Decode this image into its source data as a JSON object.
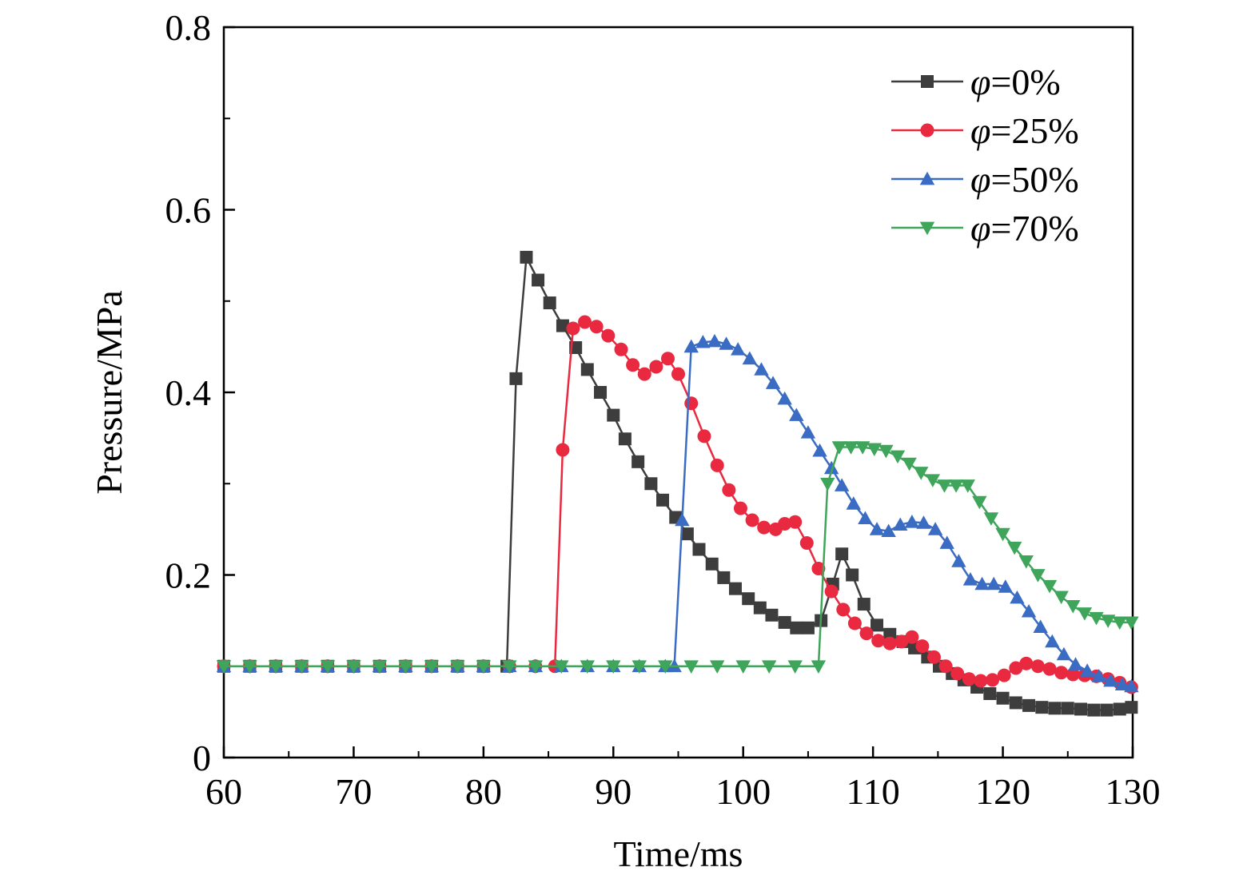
{
  "chart_data": {
    "type": "line",
    "xlabel": "Time/ms",
    "ylabel": "Pressure/MPa",
    "xlim": [
      60,
      130
    ],
    "ylim": [
      0,
      0.8
    ],
    "xticks": [
      60,
      70,
      80,
      90,
      100,
      110,
      120,
      130
    ],
    "yticks": [
      0,
      0.2,
      0.4,
      0.6,
      0.8
    ],
    "ytick_labels": [
      "0",
      "0.2",
      "0.4",
      "0.6",
      "0.8"
    ],
    "grid": false,
    "legend_position": "top-right",
    "series": [
      {
        "name": "φ=0%",
        "legend_symbol": "φ",
        "legend_value": "=0%",
        "color": "#3d3d3d",
        "marker": "square",
        "points": [
          [
            60,
            0.1
          ],
          [
            62,
            0.1
          ],
          [
            64,
            0.1
          ],
          [
            66,
            0.1
          ],
          [
            68,
            0.1
          ],
          [
            70,
            0.1
          ],
          [
            72,
            0.1
          ],
          [
            74,
            0.1
          ],
          [
            76,
            0.1
          ],
          [
            78,
            0.1
          ],
          [
            80,
            0.1
          ],
          [
            81.8,
            0.1
          ],
          [
            82.5,
            0.415
          ],
          [
            83.3,
            0.548
          ],
          [
            84.2,
            0.523
          ],
          [
            85.1,
            0.498
          ],
          [
            86.1,
            0.473
          ],
          [
            87.1,
            0.449
          ],
          [
            88,
            0.425
          ],
          [
            89,
            0.4
          ],
          [
            90,
            0.375
          ],
          [
            90.9,
            0.349
          ],
          [
            91.9,
            0.324
          ],
          [
            92.9,
            0.3
          ],
          [
            93.8,
            0.282
          ],
          [
            94.8,
            0.263
          ],
          [
            95.7,
            0.245
          ],
          [
            96.6,
            0.228
          ],
          [
            97.6,
            0.212
          ],
          [
            98.5,
            0.197
          ],
          [
            99.4,
            0.185
          ],
          [
            100.4,
            0.174
          ],
          [
            101.3,
            0.164
          ],
          [
            102.2,
            0.156
          ],
          [
            103.2,
            0.148
          ],
          [
            104.1,
            0.142
          ],
          [
            105,
            0.142
          ],
          [
            106,
            0.15
          ],
          [
            106.9,
            0.19
          ],
          [
            107.6,
            0.223
          ],
          [
            108.4,
            0.2
          ],
          [
            109.3,
            0.168
          ],
          [
            110.3,
            0.145
          ],
          [
            111.3,
            0.135
          ],
          [
            112.3,
            0.127
          ],
          [
            113.2,
            0.12
          ],
          [
            114.2,
            0.11
          ],
          [
            115.1,
            0.1
          ],
          [
            116.1,
            0.092
          ],
          [
            117,
            0.085
          ],
          [
            118,
            0.077
          ],
          [
            119,
            0.07
          ],
          [
            120,
            0.065
          ],
          [
            121,
            0.06
          ],
          [
            122,
            0.057
          ],
          [
            123,
            0.055
          ],
          [
            124,
            0.054
          ],
          [
            125,
            0.054
          ],
          [
            126,
            0.053
          ],
          [
            127,
            0.052
          ],
          [
            128,
            0.052
          ],
          [
            129,
            0.053
          ],
          [
            129.9,
            0.055
          ]
        ]
      },
      {
        "name": "φ=25%",
        "legend_symbol": "φ",
        "legend_value": "=25%",
        "color": "#e8293f",
        "marker": "circle",
        "points": [
          [
            60,
            0.1
          ],
          [
            62,
            0.1
          ],
          [
            64,
            0.1
          ],
          [
            66,
            0.1
          ],
          [
            68,
            0.1
          ],
          [
            70,
            0.1
          ],
          [
            72,
            0.1
          ],
          [
            74,
            0.1
          ],
          [
            76,
            0.1
          ],
          [
            78,
            0.1
          ],
          [
            80,
            0.1
          ],
          [
            82,
            0.1
          ],
          [
            84,
            0.1
          ],
          [
            85.5,
            0.1
          ],
          [
            86.1,
            0.337
          ],
          [
            86.9,
            0.47
          ],
          [
            87.8,
            0.477
          ],
          [
            88.7,
            0.472
          ],
          [
            89.6,
            0.462
          ],
          [
            90.6,
            0.447
          ],
          [
            91.5,
            0.43
          ],
          [
            92.4,
            0.42
          ],
          [
            93.3,
            0.428
          ],
          [
            94.2,
            0.437
          ],
          [
            95,
            0.42
          ],
          [
            96,
            0.388
          ],
          [
            97,
            0.352
          ],
          [
            98,
            0.32
          ],
          [
            98.9,
            0.293
          ],
          [
            99.8,
            0.273
          ],
          [
            100.7,
            0.26
          ],
          [
            101.6,
            0.252
          ],
          [
            102.5,
            0.25
          ],
          [
            103.2,
            0.256
          ],
          [
            104,
            0.258
          ],
          [
            104.9,
            0.235
          ],
          [
            105.8,
            0.207
          ],
          [
            106.8,
            0.182
          ],
          [
            107.7,
            0.162
          ],
          [
            108.6,
            0.147
          ],
          [
            109.5,
            0.136
          ],
          [
            110.4,
            0.128
          ],
          [
            111.3,
            0.125
          ],
          [
            112.2,
            0.127
          ],
          [
            113,
            0.132
          ],
          [
            113.8,
            0.122
          ],
          [
            114.7,
            0.11
          ],
          [
            115.6,
            0.1
          ],
          [
            116.5,
            0.092
          ],
          [
            117.4,
            0.086
          ],
          [
            118.3,
            0.084
          ],
          [
            119.2,
            0.085
          ],
          [
            120.1,
            0.09
          ],
          [
            121,
            0.098
          ],
          [
            121.8,
            0.103
          ],
          [
            122.7,
            0.1
          ],
          [
            123.6,
            0.097
          ],
          [
            124.5,
            0.093
          ],
          [
            125.4,
            0.091
          ],
          [
            126.3,
            0.09
          ],
          [
            127.2,
            0.089
          ],
          [
            128.1,
            0.086
          ],
          [
            129,
            0.082
          ],
          [
            129.9,
            0.077
          ]
        ]
      },
      {
        "name": "φ=50%",
        "legend_symbol": "φ",
        "legend_value": "=50%",
        "color": "#3b6cc4",
        "marker": "triangle-up",
        "points": [
          [
            60,
            0.1
          ],
          [
            62,
            0.1
          ],
          [
            64,
            0.1
          ],
          [
            66,
            0.1
          ],
          [
            68,
            0.1
          ],
          [
            70,
            0.1
          ],
          [
            72,
            0.1
          ],
          [
            74,
            0.1
          ],
          [
            76,
            0.1
          ],
          [
            78,
            0.1
          ],
          [
            80,
            0.1
          ],
          [
            82,
            0.1
          ],
          [
            84,
            0.1
          ],
          [
            86,
            0.1
          ],
          [
            88,
            0.1
          ],
          [
            90,
            0.1
          ],
          [
            92,
            0.1
          ],
          [
            94,
            0.1
          ],
          [
            94.7,
            0.1
          ],
          [
            95.3,
            0.26
          ],
          [
            96,
            0.45
          ],
          [
            96.9,
            0.455
          ],
          [
            97.8,
            0.456
          ],
          [
            98.7,
            0.453
          ],
          [
            99.6,
            0.447
          ],
          [
            100.5,
            0.437
          ],
          [
            101.4,
            0.425
          ],
          [
            102.3,
            0.41
          ],
          [
            103.2,
            0.393
          ],
          [
            104.1,
            0.375
          ],
          [
            105,
            0.356
          ],
          [
            105.9,
            0.336
          ],
          [
            106.8,
            0.317
          ],
          [
            107.6,
            0.298
          ],
          [
            108.5,
            0.278
          ],
          [
            109.4,
            0.262
          ],
          [
            110.3,
            0.25
          ],
          [
            111.2,
            0.248
          ],
          [
            112.1,
            0.255
          ],
          [
            113,
            0.258
          ],
          [
            113.9,
            0.257
          ],
          [
            114.8,
            0.25
          ],
          [
            115.7,
            0.235
          ],
          [
            116.6,
            0.215
          ],
          [
            117.5,
            0.195
          ],
          [
            118.4,
            0.19
          ],
          [
            119.3,
            0.19
          ],
          [
            120.2,
            0.187
          ],
          [
            121.1,
            0.175
          ],
          [
            122,
            0.16
          ],
          [
            122.9,
            0.143
          ],
          [
            123.8,
            0.127
          ],
          [
            124.7,
            0.113
          ],
          [
            125.6,
            0.102
          ],
          [
            126.5,
            0.095
          ],
          [
            127.4,
            0.089
          ],
          [
            128.3,
            0.084
          ],
          [
            129.2,
            0.08
          ],
          [
            129.9,
            0.078
          ]
        ]
      },
      {
        "name": "φ=70%",
        "legend_symbol": "φ",
        "legend_value": "=70%",
        "color": "#3fa55b",
        "marker": "triangle-down",
        "points": [
          [
            60,
            0.1
          ],
          [
            62,
            0.1
          ],
          [
            64,
            0.1
          ],
          [
            66,
            0.1
          ],
          [
            68,
            0.1
          ],
          [
            70,
            0.1
          ],
          [
            72,
            0.1
          ],
          [
            74,
            0.1
          ],
          [
            76,
            0.1
          ],
          [
            78,
            0.1
          ],
          [
            80,
            0.1
          ],
          [
            82,
            0.1
          ],
          [
            84,
            0.1
          ],
          [
            86,
            0.1
          ],
          [
            88,
            0.1
          ],
          [
            90,
            0.1
          ],
          [
            92,
            0.1
          ],
          [
            94,
            0.1
          ],
          [
            96,
            0.1
          ],
          [
            98,
            0.1
          ],
          [
            100,
            0.1
          ],
          [
            102,
            0.1
          ],
          [
            104,
            0.1
          ],
          [
            105.8,
            0.1
          ],
          [
            106.5,
            0.3
          ],
          [
            107.4,
            0.34
          ],
          [
            108.3,
            0.34
          ],
          [
            109.2,
            0.34
          ],
          [
            110.1,
            0.338
          ],
          [
            111,
            0.336
          ],
          [
            111.9,
            0.33
          ],
          [
            112.8,
            0.322
          ],
          [
            113.7,
            0.312
          ],
          [
            114.6,
            0.304
          ],
          [
            115.5,
            0.298
          ],
          [
            116.4,
            0.298
          ],
          [
            117.3,
            0.298
          ],
          [
            118.2,
            0.28
          ],
          [
            119.1,
            0.262
          ],
          [
            120,
            0.245
          ],
          [
            120.9,
            0.23
          ],
          [
            121.8,
            0.215
          ],
          [
            122.7,
            0.2
          ],
          [
            123.6,
            0.188
          ],
          [
            124.5,
            0.176
          ],
          [
            125.4,
            0.166
          ],
          [
            126.3,
            0.158
          ],
          [
            127.2,
            0.153
          ],
          [
            128.1,
            0.15
          ],
          [
            129,
            0.148
          ],
          [
            129.9,
            0.148
          ]
        ]
      }
    ]
  }
}
